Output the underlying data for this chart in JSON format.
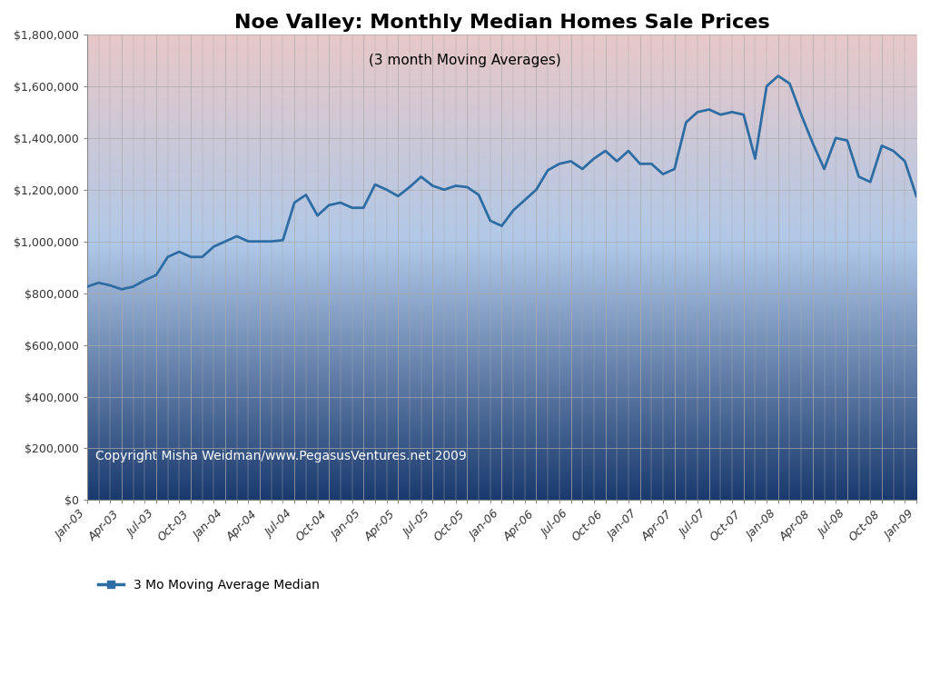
{
  "title": "Noe Valley: Monthly Median Homes Sale Prices",
  "subtitle": "(3 month Moving Averages)",
  "legend_label": "3 Mo Moving Average Median",
  "copyright_text": "Copyright Misha Weidman/www.PegasusVentures.net 2009",
  "xlabels": [
    "Jan-03",
    "Apr-03",
    "Jul-03",
    "Oct-03",
    "Jan-04",
    "Apr-04",
    "Jul-04",
    "Oct-04",
    "Jan-05",
    "Apr-05",
    "Jul-05",
    "Oct-05",
    "Jan-06",
    "Apr-06",
    "Jul-06",
    "Oct-06",
    "Jan-07",
    "Apr-07",
    "Jul-07",
    "Oct-07",
    "Jan-08",
    "Apr-08",
    "Jul-08",
    "Oct-08",
    "Jan-09"
  ],
  "values": [
    825000,
    840000,
    830000,
    815000,
    825000,
    850000,
    870000,
    940000,
    960000,
    940000,
    940000,
    980000,
    1000000,
    1020000,
    1000000,
    1000000,
    1000000,
    1005000,
    1150000,
    1180000,
    1100000,
    1140000,
    1150000,
    1130000,
    1130000,
    1220000,
    1200000,
    1175000,
    1210000,
    1250000,
    1215000,
    1200000,
    1215000,
    1210000,
    1180000,
    1080000,
    1060000,
    1120000,
    1160000,
    1200000,
    1275000,
    1300000,
    1310000,
    1280000,
    1320000,
    1350000,
    1310000,
    1350000,
    1300000,
    1300000,
    1260000,
    1280000,
    1460000,
    1500000,
    1510000,
    1490000,
    1500000,
    1490000,
    1320000,
    1600000,
    1640000,
    1610000,
    1490000,
    1380000,
    1280000,
    1400000,
    1390000,
    1250000,
    1230000,
    1370000,
    1350000,
    1310000,
    1175000
  ],
  "ylim": [
    0,
    1800000
  ],
  "yticks": [
    0,
    200000,
    400000,
    600000,
    800000,
    1000000,
    1200000,
    1400000,
    1600000,
    1800000
  ],
  "line_color": "#2e6da4",
  "line_width": 2.0,
  "grid_color": "#aaaaaa",
  "background_top_color": "#e8c8c8",
  "background_bottom_color": "#1a3a6e",
  "figure_bg": "#ffffff"
}
